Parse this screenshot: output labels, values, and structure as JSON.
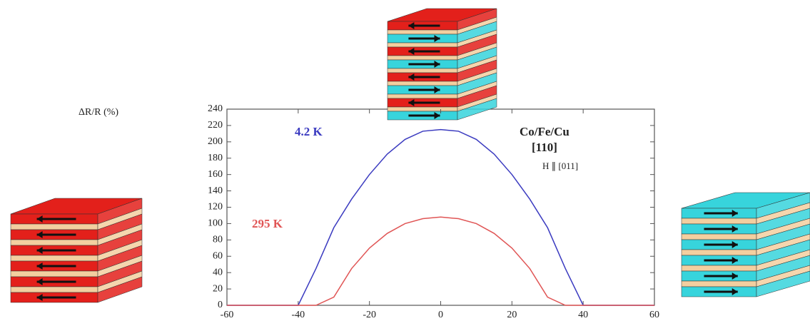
{
  "chart_data": {
    "type": "line",
    "y_label": "ΔR/R (%)",
    "annotations": [
      "Co/Fe/Cu",
      "[110]",
      "H ∥ [011]"
    ],
    "x": [
      -60,
      -50,
      -45,
      -40,
      -35,
      -30,
      -25,
      -20,
      -15,
      -10,
      -5,
      0,
      5,
      10,
      15,
      20,
      25,
      30,
      35,
      40,
      45,
      50,
      60
    ],
    "series": [
      {
        "name": "4.2 K",
        "color": "#3b3bc0",
        "values": [
          0,
          0,
          0,
          0,
          45,
          95,
          130,
          160,
          185,
          203,
          213,
          215,
          213,
          203,
          185,
          160,
          130,
          95,
          45,
          0,
          0,
          0,
          0
        ]
      },
      {
        "name": "295 K",
        "color": "#e05555",
        "values": [
          0,
          0,
          0,
          0,
          0,
          10,
          45,
          70,
          88,
          100,
          106,
          108,
          106,
          100,
          88,
          70,
          45,
          10,
          0,
          0,
          0,
          0,
          0
        ]
      }
    ],
    "xlim": [
      -60,
      60
    ],
    "xticks": [
      -60,
      -40,
      -20,
      0,
      20,
      40,
      60
    ],
    "ylim": [
      0,
      240
    ],
    "yticks": [
      0,
      20,
      40,
      60,
      80,
      100,
      120,
      140,
      160,
      180,
      200,
      220,
      240
    ]
  }
}
